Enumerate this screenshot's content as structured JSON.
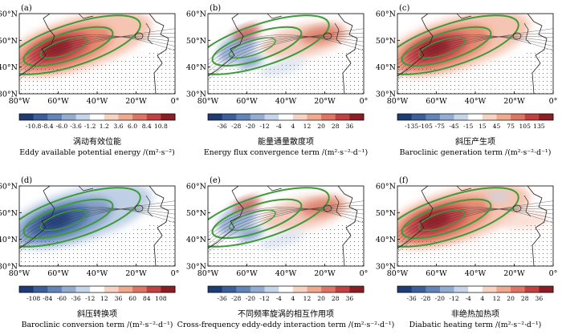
{
  "figure": {
    "lat_ticks": [
      "30°N",
      "40°N",
      "50°N",
      "60°N"
    ],
    "lon_ticks": [
      "80°W",
      "60°W",
      "40°W",
      "20°W",
      "0°"
    ]
  },
  "chart_data": [
    {
      "type": "heatmap",
      "panel_label": "(a)",
      "title_zh": "涡动有效位能",
      "title_en": "Eddy available potential energy",
      "units": "/(m²·s⁻²)",
      "colorbar_ticks": [
        "-10.8",
        "-8.4",
        "-6.0",
        "-3.6",
        "-1.2",
        "1.2",
        "3.6",
        "6.0",
        "8.4",
        "10.8"
      ],
      "colorbar_range": [
        -10.8,
        10.8
      ],
      "lon_range": [
        -80,
        0
      ],
      "lat_range": [
        30,
        60
      ],
      "dominant_sign": "positive",
      "max_center": {
        "lon": -60,
        "lat": 48
      }
    },
    {
      "type": "heatmap",
      "panel_label": "(b)",
      "title_zh": "能量通量散度项",
      "title_en": "Energy flux convergence term",
      "units": "/(m²·s⁻²·d⁻¹)",
      "colorbar_ticks": [
        "-36",
        "-28",
        "-20",
        "-12",
        "-4",
        "4",
        "12",
        "20",
        "28",
        "36"
      ],
      "colorbar_range": [
        -36,
        36
      ],
      "lon_range": [
        -80,
        0
      ],
      "lat_range": [
        30,
        60
      ],
      "dominant_sign": "mixed",
      "max_center": {
        "lon": -25,
        "lat": 50
      }
    },
    {
      "type": "heatmap",
      "panel_label": "(c)",
      "title_zh": "斜压产生项",
      "title_en": "Baroclinic generation term",
      "units": "/(m²·s⁻²·d⁻¹)",
      "colorbar_ticks": [
        "-135",
        "-105",
        "-75",
        "-45",
        "-15",
        "15",
        "45",
        "75",
        "105",
        "135"
      ],
      "colorbar_range": [
        -135,
        135
      ],
      "lon_range": [
        -80,
        0
      ],
      "lat_range": [
        30,
        60
      ],
      "dominant_sign": "positive",
      "max_center": {
        "lon": -62,
        "lat": 46
      }
    },
    {
      "type": "heatmap",
      "panel_label": "(d)",
      "title_zh": "斜压转换项",
      "title_en": "Baroclinic conversion term",
      "units": "/(m²·s⁻²·d⁻¹)",
      "colorbar_ticks": [
        "-108",
        "-84",
        "-60",
        "-36",
        "-12",
        "12",
        "36",
        "60",
        "84",
        "108"
      ],
      "colorbar_range": [
        -108,
        108
      ],
      "lon_range": [
        -80,
        0
      ],
      "lat_range": [
        30,
        60
      ],
      "dominant_sign": "negative",
      "max_center": {
        "lon": -60,
        "lat": 48
      }
    },
    {
      "type": "heatmap",
      "panel_label": "(e)",
      "title_zh": "不同频率旋涡的相互作用项",
      "title_en": "Cross-frequency eddy-eddy interaction term",
      "units": "/(m²·s⁻²·d⁻¹)",
      "colorbar_ticks": [
        "-36",
        "-28",
        "-20",
        "-12",
        "-4",
        "4",
        "12",
        "20",
        "28",
        "36"
      ],
      "colorbar_range": [
        -36,
        36
      ],
      "lon_range": [
        -80,
        0
      ],
      "lat_range": [
        30,
        60
      ],
      "dominant_sign": "mixed",
      "max_center": {
        "lon": -62,
        "lat": 52
      }
    },
    {
      "type": "heatmap",
      "panel_label": "(f)",
      "title_zh": "非绝热加热项",
      "title_en": "Diabatic heating term",
      "units": "/(m²·s⁻²·d⁻¹)",
      "colorbar_ticks": [
        "-36",
        "-28",
        "-20",
        "-12",
        "-4",
        "4",
        "12",
        "20",
        "28",
        "36"
      ],
      "colorbar_range": [
        -36,
        36
      ],
      "lon_range": [
        -80,
        0
      ],
      "lat_range": [
        30,
        60
      ],
      "dominant_sign": "positive",
      "max_center": {
        "lon": -60,
        "lat": 49
      }
    }
  ]
}
